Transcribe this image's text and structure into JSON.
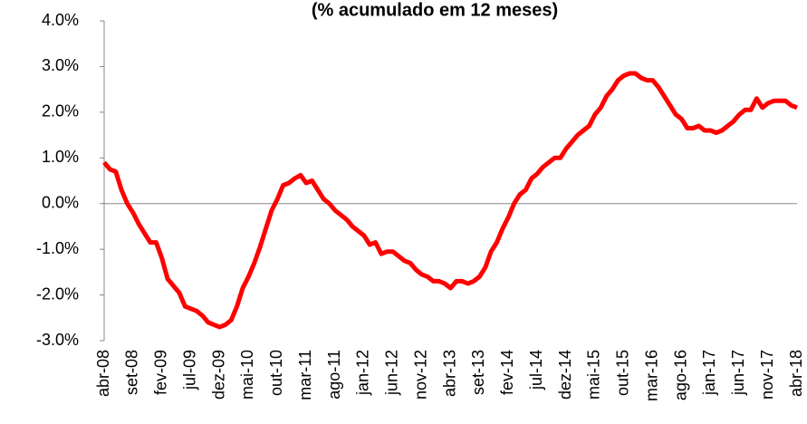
{
  "chart_data": {
    "type": "line",
    "title": "(% acumulado em 12 meses)",
    "categories": [
      "abr-08",
      null,
      null,
      null,
      null,
      "set-08",
      null,
      null,
      null,
      null,
      "fev-09",
      null,
      null,
      null,
      null,
      "jul-09",
      null,
      null,
      null,
      null,
      "dez-09",
      null,
      null,
      null,
      null,
      "mai-10",
      null,
      null,
      null,
      null,
      "out-10",
      null,
      null,
      null,
      null,
      "mar-11",
      null,
      null,
      null,
      null,
      "ago-11",
      null,
      null,
      null,
      null,
      "jan-12",
      null,
      null,
      null,
      null,
      "jun-12",
      null,
      null,
      null,
      null,
      "nov-12",
      null,
      null,
      null,
      null,
      "abr-13",
      null,
      null,
      null,
      null,
      "set-13",
      null,
      null,
      null,
      null,
      "fev-14",
      null,
      null,
      null,
      null,
      "jul-14",
      null,
      null,
      null,
      null,
      "dez-14",
      null,
      null,
      null,
      null,
      "mai-15",
      null,
      null,
      null,
      null,
      "out-15",
      null,
      null,
      null,
      null,
      "mar-16",
      null,
      null,
      null,
      null,
      "ago-16",
      null,
      null,
      null,
      null,
      "jan-17",
      null,
      null,
      null,
      null,
      "jun-17",
      null,
      null,
      null,
      null,
      "nov-17",
      null,
      null,
      null,
      null,
      "abr-18"
    ],
    "series": [
      {
        "color": "#ff0000",
        "values": [
          0.9,
          0.75,
          0.7,
          0.3,
          0.0,
          -0.2,
          -0.45,
          -0.65,
          -0.85,
          -0.85,
          -1.2,
          -1.65,
          -1.8,
          -1.95,
          -2.25,
          -2.3,
          -2.35,
          -2.45,
          -2.6,
          -2.65,
          -2.7,
          -2.65,
          -2.55,
          -2.25,
          -1.85,
          -1.6,
          -1.3,
          -0.95,
          -0.55,
          -0.15,
          0.1,
          0.4,
          0.45,
          0.55,
          0.62,
          0.45,
          0.5,
          0.3,
          0.1,
          0.0,
          -0.15,
          -0.25,
          -0.35,
          -0.5,
          -0.6,
          -0.7,
          -0.9,
          -0.85,
          -1.1,
          -1.05,
          -1.05,
          -1.15,
          -1.25,
          -1.3,
          -1.45,
          -1.55,
          -1.6,
          -1.7,
          -1.7,
          -1.75,
          -1.85,
          -1.7,
          -1.7,
          -1.75,
          -1.7,
          -1.6,
          -1.4,
          -1.05,
          -0.85,
          -0.55,
          -0.3,
          0.0,
          0.2,
          0.3,
          0.55,
          0.65,
          0.8,
          0.9,
          1.0,
          1.0,
          1.2,
          1.35,
          1.5,
          1.6,
          1.7,
          1.95,
          2.1,
          2.35,
          2.5,
          2.7,
          2.8,
          2.85,
          2.85,
          2.75,
          2.7,
          2.7,
          2.55,
          2.35,
          2.15,
          1.95,
          1.85,
          1.65,
          1.65,
          1.7,
          1.6,
          1.6,
          1.55,
          1.6,
          1.7,
          1.8,
          1.95,
          2.05,
          2.05,
          2.3,
          2.1,
          2.2,
          2.25,
          2.25,
          2.25,
          2.15,
          2.1
        ]
      }
    ],
    "ylim": [
      -3,
      4
    ],
    "yticks": [
      {
        "value": -3,
        "label": "-3.0%"
      },
      {
        "value": -2,
        "label": "-2.0%"
      },
      {
        "value": -1,
        "label": "-1.0%"
      },
      {
        "value": 0,
        "label": "0.0%"
      },
      {
        "value": 1,
        "label": "1.0%"
      },
      {
        "value": 2,
        "label": "2.0%"
      },
      {
        "value": 3,
        "label": "3.0%"
      },
      {
        "value": 4,
        "label": "4.0%"
      }
    ],
    "grid": false
  }
}
